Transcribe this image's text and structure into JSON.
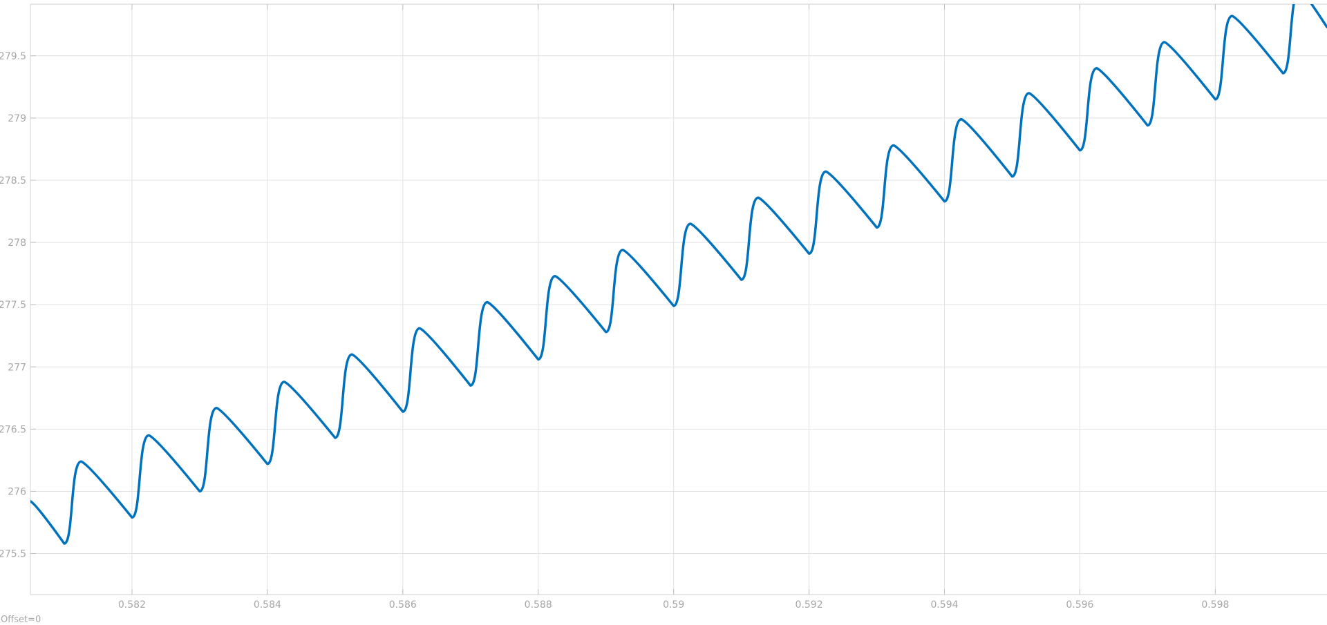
{
  "chart_data": {
    "type": "line",
    "title": "",
    "xlabel": "",
    "ylabel": "",
    "xlim": [
      0.5805,
      0.59965
    ],
    "ylim": [
      275.17,
      279.915
    ],
    "x_ticks": [
      0.582,
      0.584,
      0.586,
      0.588,
      0.59,
      0.592,
      0.594,
      0.596,
      0.598
    ],
    "x_tick_labels": [
      "0.582",
      "0.584",
      "0.586",
      "0.588",
      "0.59",
      "0.592",
      "0.594",
      "0.596",
      "0.598"
    ],
    "y_ticks": [
      275.5,
      276,
      276.5,
      277,
      277.5,
      278,
      278.5,
      279,
      279.5
    ],
    "y_tick_labels": [
      "275.5",
      "276",
      "276.5",
      "277",
      "277.5",
      "278",
      "278.5",
      "279",
      "279.5"
    ],
    "grid": true,
    "legend": "none",
    "line_color": "#0072BD",
    "grid_color": "#e1e1e1",
    "axis_color": "#d0d0d0",
    "series": [
      {
        "x": [
          0.5805,
          0.581,
          0.58125,
          0.582,
          0.58225,
          0.583,
          0.58325,
          0.584,
          0.58425,
          0.585,
          0.58525,
          0.586,
          0.58625,
          0.587,
          0.58725,
          0.588,
          0.58825,
          0.589,
          0.58925,
          0.59,
          0.59025,
          0.591,
          0.59125,
          0.592,
          0.59225,
          0.593,
          0.59325,
          0.594,
          0.59425,
          0.595,
          0.59525,
          0.596,
          0.59625,
          0.597,
          0.59725,
          0.598,
          0.59825,
          0.599,
          0.59925,
          0.59965
        ],
        "y": [
          275.92,
          275.58,
          276.24,
          275.79,
          276.45,
          276.0,
          276.67,
          276.22,
          276.88,
          276.43,
          277.1,
          276.64,
          277.31,
          276.85,
          277.52,
          277.06,
          277.73,
          277.28,
          277.94,
          277.49,
          278.15,
          277.7,
          278.36,
          277.91,
          278.57,
          278.12,
          278.78,
          278.33,
          278.99,
          278.53,
          279.2,
          278.74,
          279.4,
          278.94,
          279.61,
          279.15,
          279.82,
          279.36,
          280.03,
          279.73
        ]
      }
    ]
  },
  "footer": {
    "offset_label": "Offset=0"
  }
}
